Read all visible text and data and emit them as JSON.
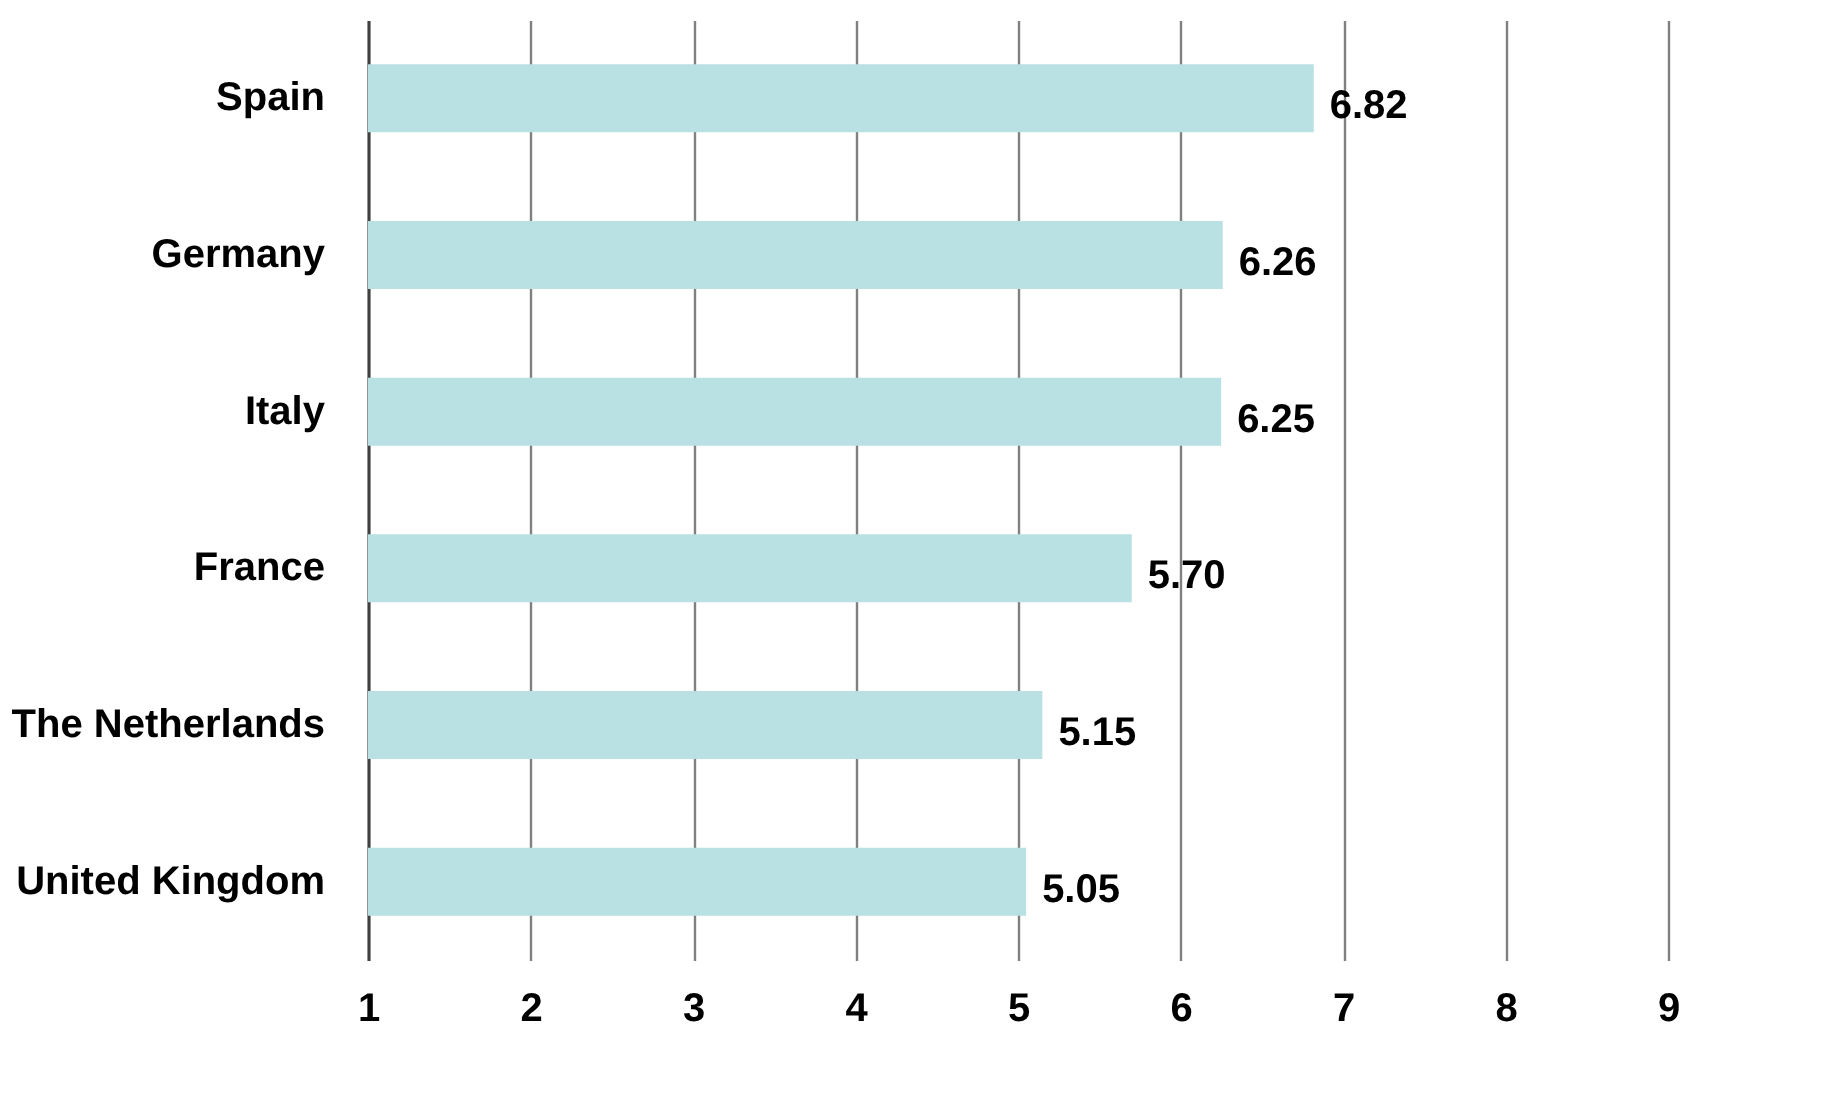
{
  "chart_data": {
    "type": "bar",
    "orientation": "horizontal",
    "categories": [
      "Spain",
      "Germany",
      "Italy",
      "France",
      "The Netherlands",
      "United Kingdom"
    ],
    "values": [
      6.82,
      6.26,
      6.25,
      5.7,
      5.15,
      5.05
    ],
    "value_labels": [
      "6.82",
      "6.26",
      "6.25",
      "5.70",
      "5.15",
      "5.05"
    ],
    "color": "#b9e0e3",
    "xlim": [
      1,
      9
    ],
    "xticks": [
      1,
      2,
      3,
      4,
      5,
      6,
      7,
      8,
      9
    ],
    "grid": "x"
  }
}
